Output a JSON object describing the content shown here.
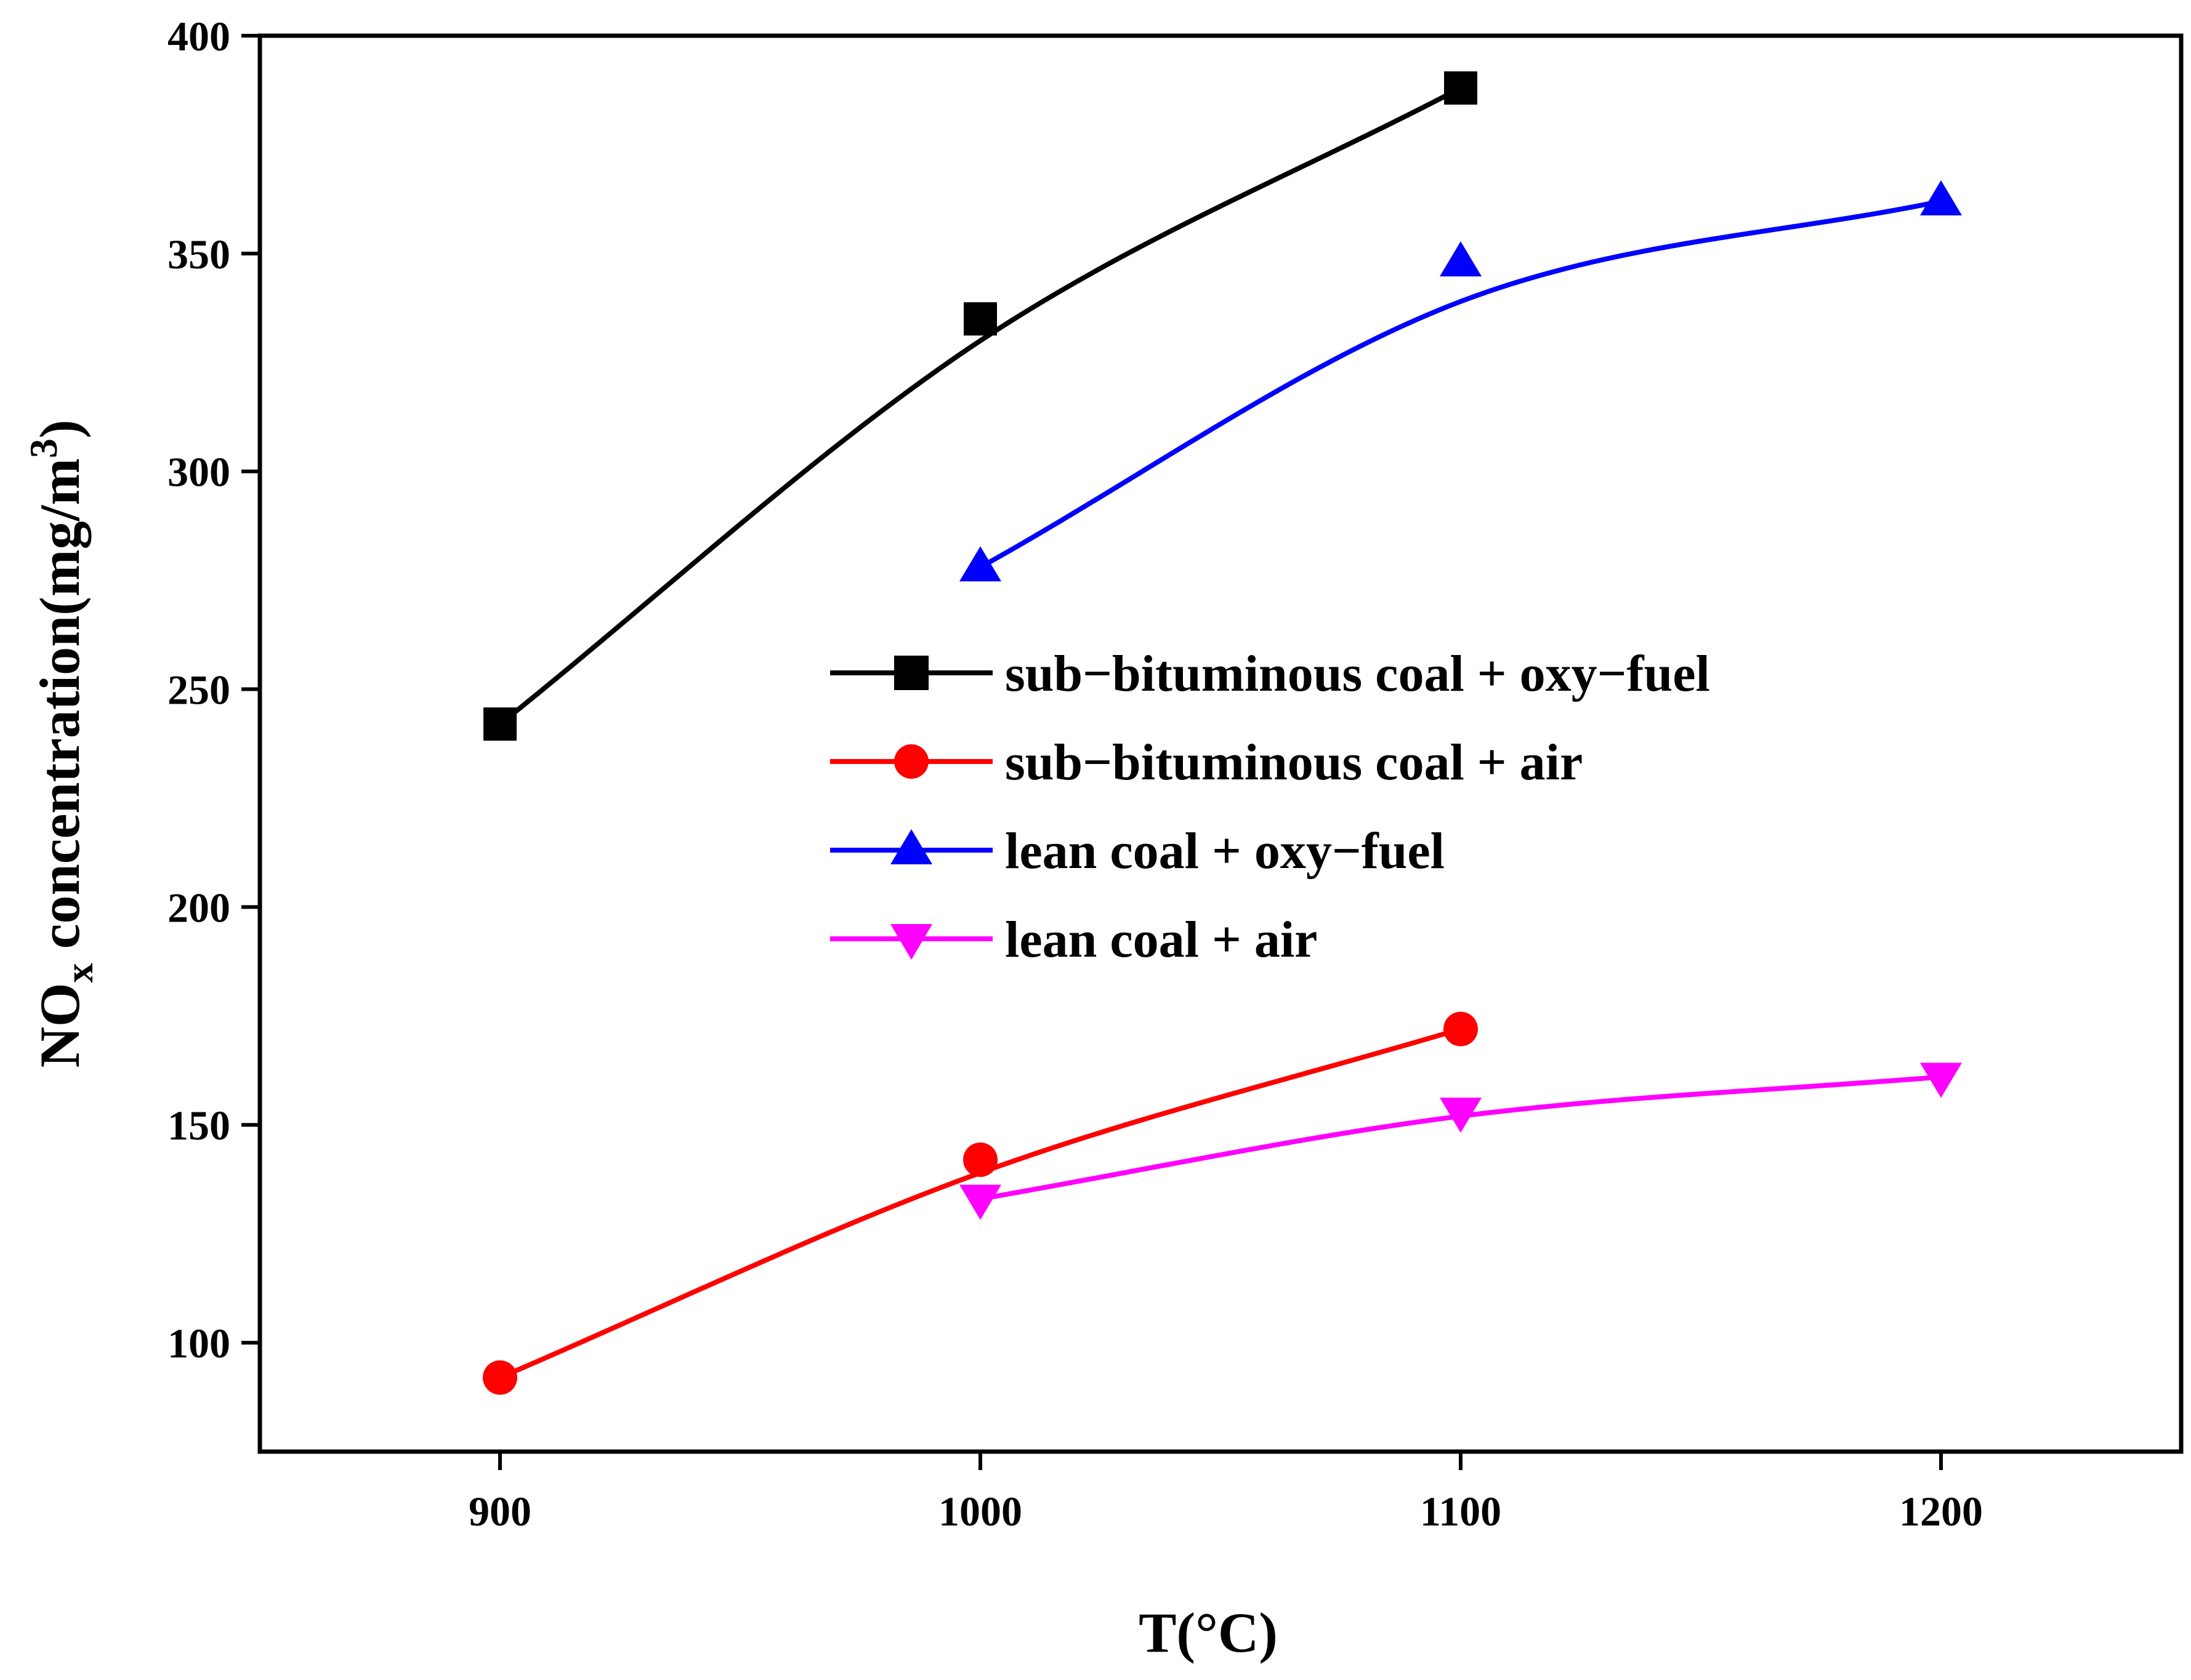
{
  "chart_data": {
    "type": "line",
    "title": "",
    "xlabel": "T(°C)",
    "ylabel": {
      "prefix": "NO",
      "subscript": "x",
      "middle": " concentration(mg/m",
      "superscript": "3",
      "suffix": ")"
    },
    "xlim": [
      850,
      1250
    ],
    "ylim": [
      75,
      400
    ],
    "xticks": [
      900,
      1000,
      1100,
      1200
    ],
    "yticks": [
      100,
      150,
      200,
      250,
      300,
      350,
      400
    ],
    "legend_position": "center-right",
    "grid": false,
    "series": [
      {
        "name": "sub−bituminous coal + oxy−fuel",
        "color": "#000000",
        "marker": "square",
        "x": [
          900,
          1000,
          1100
        ],
        "y": [
          242,
          335,
          388
        ],
        "fit": [
          242,
          330,
          388
        ]
      },
      {
        "name": "sub−bituminous coal + air",
        "color": "#ff0000",
        "marker": "circle",
        "x": [
          900,
          1000,
          1100
        ],
        "y": [
          92,
          142,
          172
        ],
        "fit": [
          92,
          139,
          172
        ]
      },
      {
        "name": "lean coal + oxy−fuel",
        "color": "#0000ff",
        "marker": "triangle-up",
        "x": [
          1000,
          1100,
          1200
        ],
        "y": [
          278,
          348,
          362
        ],
        "fit": [
          278,
          339,
          362
        ]
      },
      {
        "name": "lean coal + air",
        "color": "#ff00ff",
        "marker": "triangle-down",
        "x": [
          1000,
          1100,
          1200
        ],
        "y": [
          133,
          153,
          161
        ],
        "fit": [
          133,
          152,
          161
        ]
      }
    ]
  }
}
